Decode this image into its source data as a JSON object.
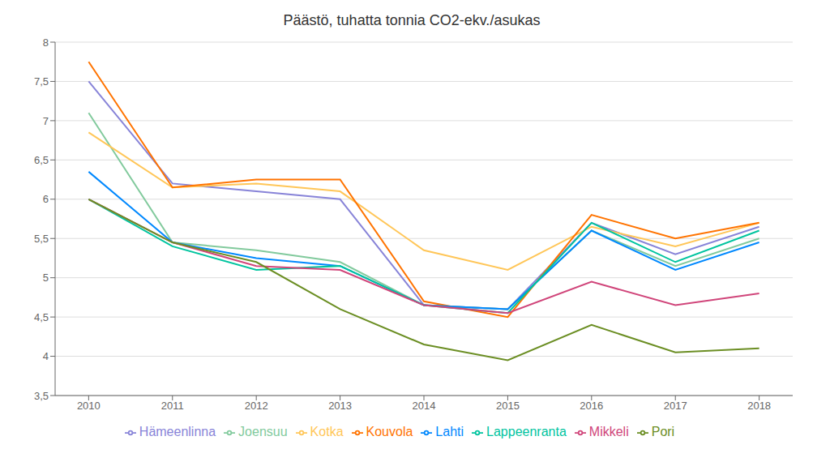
{
  "chart_data": {
    "type": "line",
    "title": "Päästö, tuhatta tonnia CO2-ekv./asukas",
    "x": [
      2010,
      2011,
      2012,
      2013,
      2014,
      2015,
      2016,
      2017,
      2018
    ],
    "xlim": [
      2009.6,
      2018.4
    ],
    "xticks": [
      2010,
      2011,
      2012,
      2013,
      2014,
      2015,
      2016,
      2017,
      2018
    ],
    "ylim": [
      3.5,
      8.0
    ],
    "yticks": [
      {
        "value": 3.5,
        "label": "3,5"
      },
      4,
      {
        "value": 4.5,
        "label": "4,5"
      },
      5,
      {
        "value": 5.5,
        "label": "5,5"
      },
      6,
      {
        "value": 6.5,
        "label": "6,5"
      },
      7,
      {
        "value": 7.5,
        "label": "7,5"
      },
      8
    ],
    "grid": true,
    "legend": "bottom",
    "series": [
      {
        "name": "Hämeenlinna",
        "color": "#8884d8",
        "values": [
          7.5,
          6.2,
          6.1,
          6.0,
          4.65,
          4.6,
          5.7,
          5.3,
          5.65
        ]
      },
      {
        "name": "Joensuu",
        "color": "#82ca9d",
        "values": [
          7.1,
          5.45,
          5.35,
          5.2,
          4.65,
          4.6,
          5.6,
          5.15,
          5.5
        ]
      },
      {
        "name": "Kotka",
        "color": "#ffc658",
        "values": [
          6.85,
          6.15,
          6.2,
          6.1,
          5.35,
          5.1,
          5.65,
          5.4,
          5.7
        ]
      },
      {
        "name": "Kouvola",
        "color": "#ff7300",
        "values": [
          7.75,
          6.15,
          6.25,
          6.25,
          4.7,
          4.5,
          5.8,
          5.5,
          5.7
        ]
      },
      {
        "name": "Lahti",
        "color": "#0088fe",
        "values": [
          6.35,
          5.45,
          5.25,
          5.15,
          4.65,
          4.6,
          5.6,
          5.1,
          5.45
        ]
      },
      {
        "name": "Lappeenranta",
        "color": "#00c49f",
        "values": [
          6.0,
          5.4,
          5.1,
          5.15,
          4.65,
          4.55,
          5.7,
          5.2,
          5.6
        ]
      },
      {
        "name": "Mikkeli",
        "color": "#d0457a",
        "values": [
          6.0,
          5.45,
          5.15,
          5.1,
          4.65,
          4.55,
          4.95,
          4.65,
          4.8
        ]
      },
      {
        "name": "Pori",
        "color": "#6b8e23",
        "values": [
          6.0,
          5.45,
          5.2,
          4.6,
          4.15,
          3.95,
          4.4,
          4.05,
          4.1
        ]
      }
    ]
  }
}
